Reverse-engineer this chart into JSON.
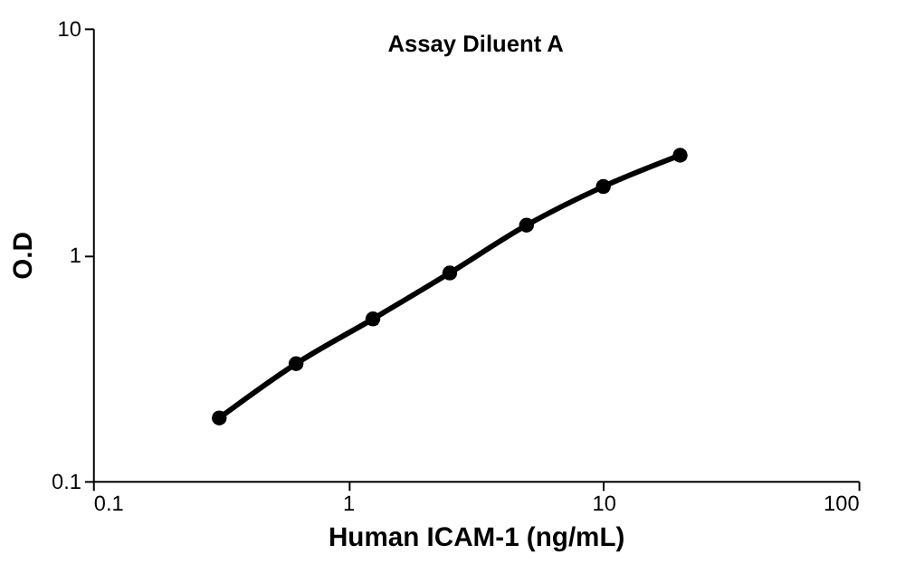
{
  "chart_data": {
    "type": "line",
    "title": "Assay Diluent A",
    "xlabel": "Human ICAM-1 (ng/mL)",
    "ylabel": "O.D",
    "x": [
      0.3125,
      0.625,
      1.25,
      2.5,
      5,
      10,
      20
    ],
    "series": [
      {
        "color": "#000000",
        "values": [
          0.19,
          0.33,
          0.52,
          0.83,
          1.35,
          2.0,
          2.75
        ]
      }
    ],
    "xlim": [
      0.1,
      100
    ],
    "xticks": [
      0.1,
      1,
      10,
      100
    ],
    "ylim": [
      0.1,
      10
    ],
    "yticks": [
      0.1,
      1,
      10
    ],
    "log": "xy",
    "grid": false,
    "marker": "circle",
    "line_style": "solid"
  }
}
